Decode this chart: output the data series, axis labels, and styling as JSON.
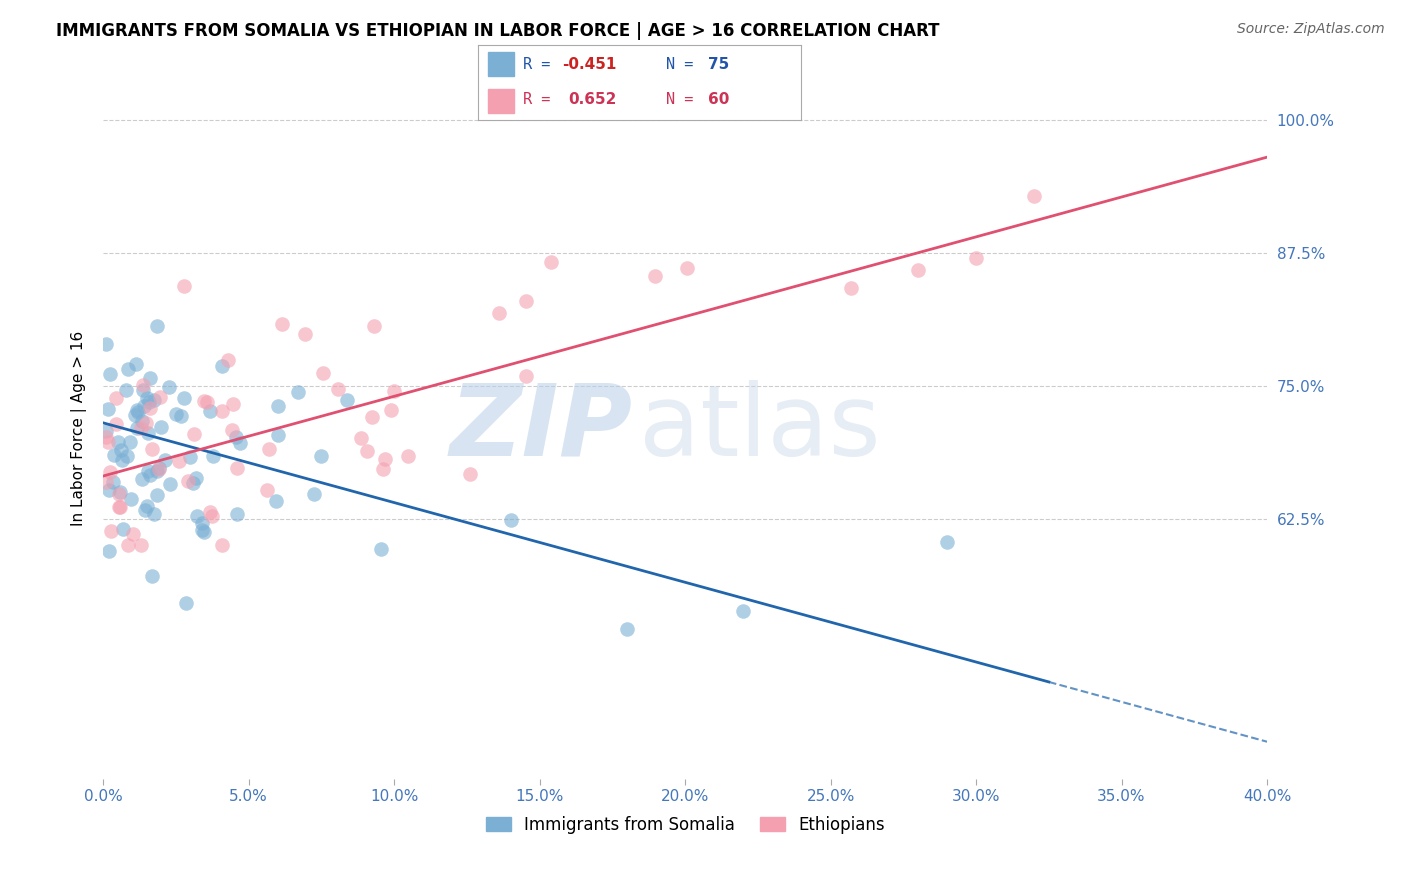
{
  "title": "IMMIGRANTS FROM SOMALIA VS ETHIOPIAN IN LABOR FORCE | AGE > 16 CORRELATION CHART",
  "source": "Source: ZipAtlas.com",
  "ylabel": "In Labor Force | Age > 16",
  "xlim": [
    0.0,
    0.4
  ],
  "ylim": [
    0.38,
    1.04
  ],
  "yticks": [
    0.625,
    0.75,
    0.875,
    1.0
  ],
  "ytick_labels": [
    "62.5%",
    "75.0%",
    "87.5%",
    "100.0%"
  ],
  "xticks": [
    0.0,
    0.05,
    0.1,
    0.15,
    0.2,
    0.25,
    0.3,
    0.35,
    0.4
  ],
  "xtick_labels": [
    "0.0%",
    "5.0%",
    "10.0%",
    "15.0%",
    "20.0%",
    "25.0%",
    "30.0%",
    "35.0%",
    "40.0%"
  ],
  "somalia_color": "#7bafd4",
  "ethiopia_color": "#f4a0b0",
  "somalia_line_color": "#2166ac",
  "ethiopia_line_color": "#e05070",
  "somalia_R": -0.451,
  "somalia_N": 75,
  "ethiopia_R": 0.652,
  "ethiopia_N": 60,
  "watermark_zip": "ZIP",
  "watermark_atlas": "atlas",
  "legend_label_somalia": "Immigrants from Somalia",
  "legend_label_ethiopia": "Ethiopians",
  "somalia_line_x0": 0.0,
  "somalia_line_y0": 0.715,
  "somalia_line_x1": 0.4,
  "somalia_line_y1": 0.415,
  "somalia_line_solid_end": 0.325,
  "ethiopia_line_x0": 0.0,
  "ethiopia_line_y0": 0.665,
  "ethiopia_line_x1": 0.4,
  "ethiopia_line_y1": 0.965,
  "tick_color": "#4477bb",
  "grid_color": "#cccccc",
  "title_fontsize": 12,
  "source_fontsize": 10,
  "tick_fontsize": 11,
  "ylabel_fontsize": 11
}
